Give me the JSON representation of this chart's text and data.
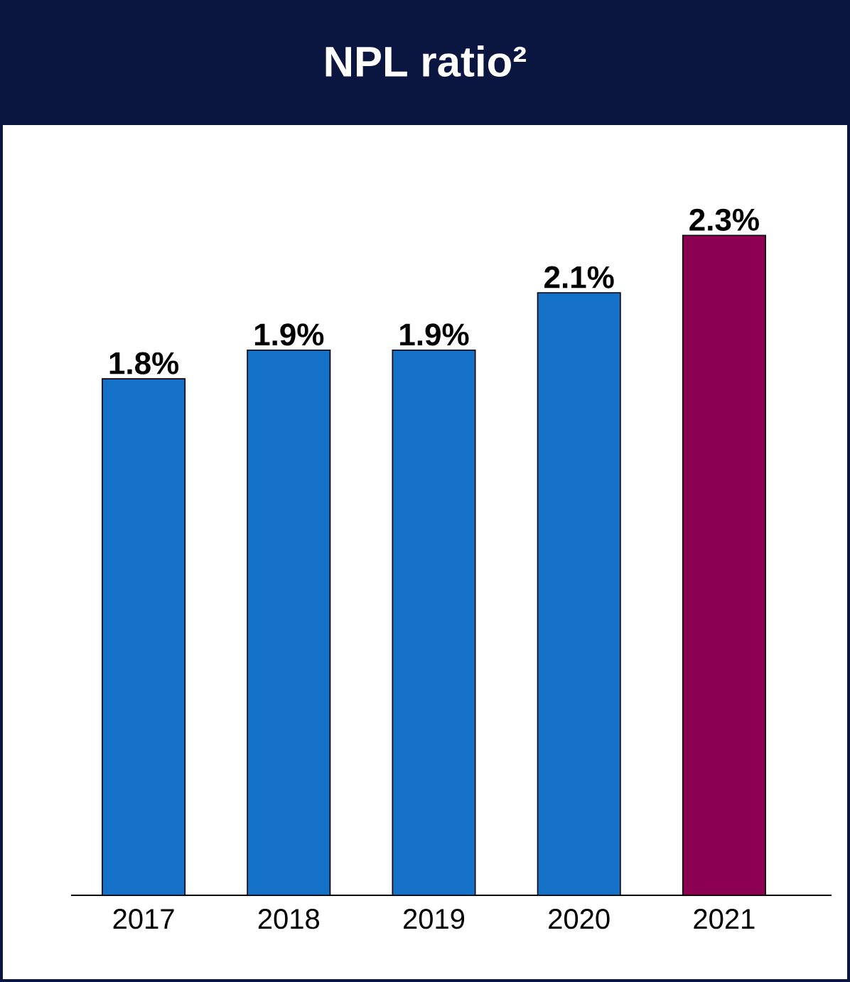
{
  "chart_data": {
    "type": "bar",
    "title": "NPL ratio²",
    "categories": [
      "2017",
      "2018",
      "2019",
      "2020",
      "2021"
    ],
    "values": [
      1.8,
      1.9,
      1.9,
      2.1,
      2.3
    ],
    "value_labels": [
      "1.8%",
      "1.9%",
      "1.9%",
      "2.1%",
      "2.3%"
    ],
    "colors": [
      "#1570c8",
      "#1570c8",
      "#1570c8",
      "#1570c8",
      "#8b0050"
    ]
  }
}
